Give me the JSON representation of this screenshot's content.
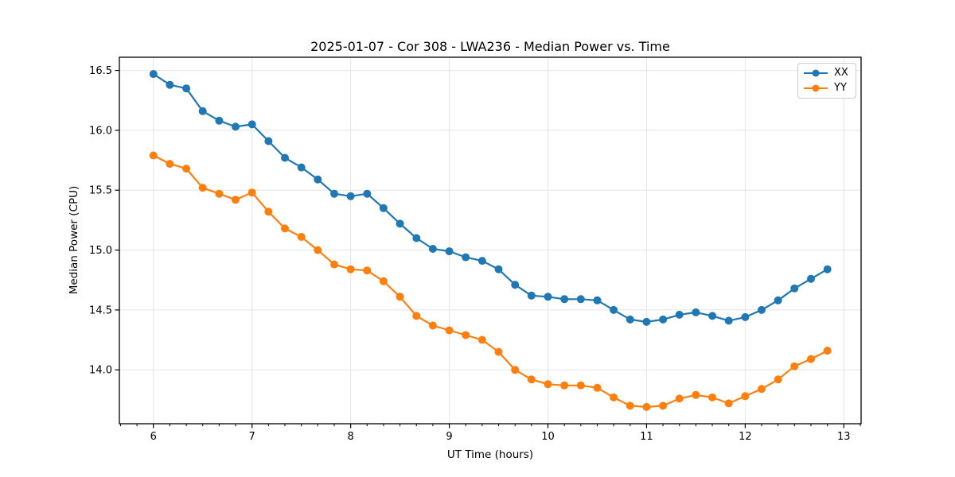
{
  "figure": {
    "background": "#ffffff",
    "spine_color": "#000000",
    "grid_color": "#e4e4e4"
  },
  "chart_data": {
    "type": "line",
    "title": "2025-01-07 - Cor 308 - LWA236 - Median Power vs. Time",
    "xlabel": "UT Time (hours)",
    "ylabel": "Median Power (CPU)",
    "grid": true,
    "legend_position": "upper right",
    "xlim": [
      5.655,
      13.175
    ],
    "ylim": [
      13.55,
      16.61
    ],
    "x_ticks": [
      6,
      7,
      8,
      9,
      10,
      11,
      12,
      13
    ],
    "x_tick_labels": [
      "6",
      "7",
      "8",
      "9",
      "10",
      "11",
      "12",
      "13"
    ],
    "x_minor_step": 0.166667,
    "y_ticks": [
      14.0,
      14.5,
      15.0,
      15.5,
      16.0,
      16.5
    ],
    "y_tick_labels": [
      "14.0",
      "14.5",
      "15.0",
      "15.5",
      "16.0",
      "16.5"
    ],
    "x": [
      6,
      6.1667,
      6.3333,
      6.5,
      6.6667,
      6.8333,
      7,
      7.1667,
      7.3333,
      7.5,
      7.6667,
      7.8333,
      8,
      8.1667,
      8.3333,
      8.5,
      8.6667,
      8.8333,
      9,
      9.1667,
      9.3333,
      9.5,
      9.6667,
      9.8333,
      10,
      10.1667,
      10.3333,
      10.5,
      10.6667,
      10.8333,
      11,
      11.1667,
      11.3333,
      11.5,
      11.6667,
      11.8333,
      12,
      12.1667,
      12.3333,
      12.5,
      12.6667,
      12.8333
    ],
    "series": [
      {
        "name": "XX",
        "color": "#1f77b4",
        "values": [
          16.47,
          16.38,
          16.35,
          16.16,
          16.08,
          16.03,
          16.05,
          15.91,
          15.77,
          15.69,
          15.59,
          15.47,
          15.45,
          15.47,
          15.35,
          15.22,
          15.1,
          15.01,
          14.99,
          14.94,
          14.91,
          14.84,
          14.71,
          14.62,
          14.61,
          14.59,
          14.59,
          14.58,
          14.5,
          14.42,
          14.4,
          14.42,
          14.46,
          14.48,
          14.45,
          14.41,
          14.44,
          14.5,
          14.58,
          14.68,
          14.76,
          14.84
        ]
      },
      {
        "name": "YY",
        "color": "#ff7f0e",
        "values": [
          15.79,
          15.72,
          15.68,
          15.52,
          15.47,
          15.42,
          15.48,
          15.32,
          15.18,
          15.11,
          15.0,
          14.88,
          14.84,
          14.83,
          14.74,
          14.61,
          14.45,
          14.37,
          14.33,
          14.29,
          14.25,
          14.15,
          14.0,
          13.92,
          13.88,
          13.87,
          13.87,
          13.85,
          13.77,
          13.7,
          13.69,
          13.7,
          13.76,
          13.79,
          13.77,
          13.72,
          13.78,
          13.84,
          13.92,
          14.03,
          14.09,
          14.16
        ]
      }
    ]
  }
}
